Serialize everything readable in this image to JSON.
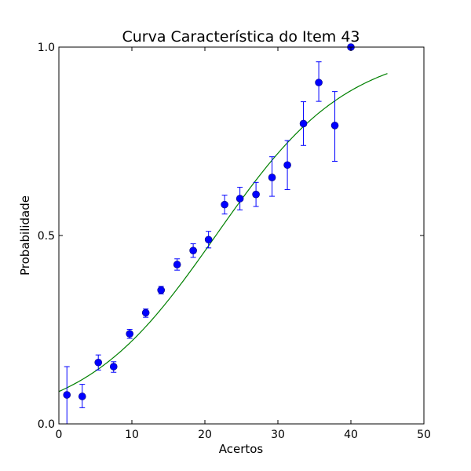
{
  "chart_data": {
    "type": "scatter",
    "title": "Curva Característica do Item 43",
    "xlabel": "Acertos",
    "ylabel": "Probabilidade",
    "xlim": [
      0,
      50
    ],
    "ylim": [
      0.0,
      1.0
    ],
    "xticks": [
      0,
      10,
      20,
      30,
      40,
      50
    ],
    "xtick_labels": [
      "0",
      "10",
      "20",
      "30",
      "40",
      "50"
    ],
    "yticks": [
      0.0,
      0.5,
      1.0
    ],
    "ytick_labels": [
      "0.0",
      "0.5",
      "1.0"
    ],
    "grid": false,
    "legend": "none",
    "points": {
      "color": "#0000ff",
      "errorbar_color": "#0000ff",
      "x": [
        1.1,
        3.2,
        5.4,
        7.5,
        9.7,
        11.9,
        14.0,
        16.2,
        18.4,
        20.5,
        22.7,
        24.8,
        27.0,
        29.2,
        31.3,
        33.5,
        35.6,
        37.8,
        40.0
      ],
      "y": [
        0.077,
        0.073,
        0.163,
        0.152,
        0.239,
        0.295,
        0.355,
        0.423,
        0.46,
        0.489,
        0.582,
        0.598,
        0.609,
        0.654,
        0.687,
        0.797,
        0.906,
        0.792,
        1.0
      ],
      "err_low": [
        0.08,
        0.03,
        0.02,
        0.015,
        0.012,
        0.012,
        0.01,
        0.015,
        0.018,
        0.022,
        0.025,
        0.03,
        0.032,
        0.05,
        0.065,
        0.058,
        0.05,
        0.095,
        0.0
      ],
      "err_high": [
        0.075,
        0.032,
        0.02,
        0.013,
        0.012,
        0.01,
        0.01,
        0.015,
        0.018,
        0.022,
        0.025,
        0.03,
        0.032,
        0.055,
        0.065,
        0.058,
        0.055,
        0.09,
        0.0
      ]
    },
    "curve": {
      "color": "#008000",
      "model": "logistic",
      "x_start": 0,
      "x_end": 45,
      "k": 0.11,
      "x0": 21.5
    }
  }
}
